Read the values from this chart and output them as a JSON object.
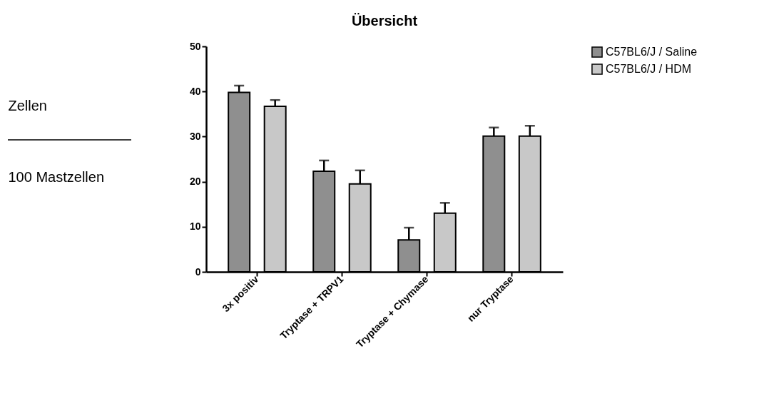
{
  "chart_data": {
    "type": "bar",
    "title": "Übersicht",
    "ylabel": "Zellen\n100 Mastzellen",
    "categories": [
      "3x positiv",
      "Tryptase + TRPV1",
      "Tryptase + Chymase",
      "nur Tryptase"
    ],
    "series": [
      {
        "name": "C57BL6/J / Saline",
        "color": "#8f8f8f",
        "values": [
          39.8,
          22.3,
          7.1,
          30.1
        ],
        "errors": [
          [
            39.8,
            41.3
          ],
          [
            22.3,
            24.7
          ],
          [
            7.1,
            9.8
          ],
          [
            30.1,
            32.0
          ]
        ]
      },
      {
        "name": "C57BL6/J  / HDM",
        "color": "#c8c8c8",
        "values": [
          36.7,
          19.5,
          13.0,
          30.1
        ],
        "errors": [
          [
            36.7,
            38.1
          ],
          [
            19.5,
            22.5
          ],
          [
            13.0,
            15.3
          ],
          [
            30.1,
            32.4
          ]
        ]
      }
    ],
    "ylim": [
      0,
      50
    ],
    "yticks": [
      0,
      10,
      20,
      30,
      40,
      50
    ],
    "grid": false,
    "legend": "top right"
  }
}
